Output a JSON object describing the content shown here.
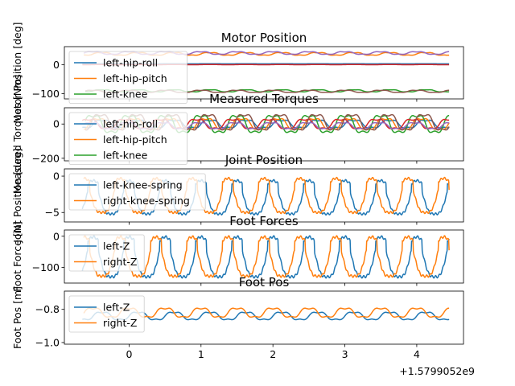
{
  "figure": {
    "x_offset_label": "+1.5799052e9",
    "shared_x": {
      "min": -0.9,
      "max": 4.65,
      "ticks": [
        0,
        1,
        2,
        3,
        4
      ]
    }
  },
  "chart_data": [
    {
      "type": "line",
      "title": "Motor Position",
      "ylabel": "Motor Position [deg]",
      "ylim": [
        -118,
        62
      ],
      "yticks": [
        -100,
        0
      ],
      "legend": {
        "placement": "upper-left",
        "entries": [
          "left-hip-roll",
          "left-hip-pitch",
          "left-knee"
        ]
      },
      "series": [
        {
          "name": "left-hip-roll",
          "color": "#1f77b4",
          "kind": "const",
          "level": 3,
          "amp": 1,
          "period": 0.5
        },
        {
          "name": "left-hip-pitch",
          "color": "#ff7f0e",
          "kind": "sine",
          "level": 37,
          "amp": 5,
          "period": 0.5
        },
        {
          "name": "left-knee",
          "color": "#2ca02c",
          "kind": "sine",
          "level": -90,
          "amp": 4,
          "period": 0.5
        },
        {
          "name": "",
          "color": "#d62728",
          "kind": "const",
          "level": 0,
          "amp": 1,
          "period": 0.5
        },
        {
          "name": "",
          "color": "#9467bd",
          "kind": "sine",
          "level": 40,
          "amp": 5,
          "period": 0.5,
          "phase": 0.25
        },
        {
          "name": "",
          "color": "#8c564b",
          "kind": "sine",
          "level": -92,
          "amp": 4,
          "period": 0.5,
          "phase": 0.25
        }
      ]
    },
    {
      "type": "line",
      "title": "Measured Torques",
      "ylabel": "Measured Torques [Nm]",
      "ylim": [
        -215,
        95
      ],
      "yticks": [
        -200,
        0
      ],
      "legend": {
        "placement": "upper-left",
        "entries": [
          "left-hip-roll",
          "left-hip-pitch",
          "left-knee"
        ]
      },
      "series": [
        {
          "name": "left-hip-roll",
          "color": "#1f77b4",
          "kind": "sine",
          "level": 0,
          "amp": 25,
          "period": 0.5
        },
        {
          "name": "left-hip-pitch",
          "color": "#ff7f0e",
          "kind": "sine",
          "level": 0,
          "amp": 35,
          "period": 0.5,
          "phase": 0.12
        },
        {
          "name": "left-knee",
          "color": "#2ca02c",
          "kind": "sine",
          "level": 0,
          "amp": 55,
          "period": 0.5,
          "phase": 0.25
        },
        {
          "name": "",
          "color": "#d62728",
          "kind": "sine",
          "level": 0,
          "amp": 30,
          "period": 0.5,
          "phase": 0.37
        },
        {
          "name": "",
          "color": "#9467bd",
          "kind": "sine",
          "level": -10,
          "amp": 20,
          "period": 0.5,
          "phase": 0.3
        },
        {
          "name": "",
          "color": "#8c564b",
          "kind": "sine",
          "level": 10,
          "amp": 50,
          "period": 0.5,
          "phase": 0.05
        }
      ]
    },
    {
      "type": "line",
      "title": "Joint Position",
      "ylabel": "Joint Position [deg]",
      "ylim": [
        -6.3,
        1.0
      ],
      "yticks": [
        -5,
        0
      ],
      "legend": {
        "placement": "upper-left",
        "entries": [
          "left-knee-spring",
          "right-knee-spring"
        ]
      },
      "series": [
        {
          "name": "left-knee-spring",
          "color": "#1f77b4",
          "kind": "gait",
          "high": -0.6,
          "low": -5.2,
          "period": 0.5,
          "phase": 0.0
        },
        {
          "name": "right-knee-spring",
          "color": "#ff7f0e",
          "kind": "gait",
          "high": -0.3,
          "low": -5.0,
          "period": 0.5,
          "phase": 0.25
        }
      ]
    },
    {
      "type": "line",
      "title": "Foot Forces",
      "ylabel": "Foot Force [N]",
      "ylim": [
        -150,
        20
      ],
      "yticks": [
        -100,
        0
      ],
      "legend": {
        "placement": "upper-left",
        "entries": [
          "left-Z",
          "right-Z"
        ]
      },
      "series": [
        {
          "name": "left-Z",
          "color": "#1f77b4",
          "kind": "gait",
          "high": -2,
          "low": -130,
          "period": 0.5,
          "phase": 0.0
        },
        {
          "name": "right-Z",
          "color": "#ff7f0e",
          "kind": "gait",
          "high": -2,
          "low": -128,
          "period": 0.5,
          "phase": 0.25
        }
      ]
    },
    {
      "type": "line",
      "title": "Foot Pos",
      "ylabel": "Foot Pos [m]",
      "ylim": [
        -1.01,
        -0.69
      ],
      "yticks": [
        -1.0,
        -0.8
      ],
      "legend": {
        "placement": "upper-left",
        "entries": [
          "left-Z",
          "right-Z"
        ]
      },
      "series": [
        {
          "name": "left-Z",
          "color": "#1f77b4",
          "kind": "sine",
          "level": -0.84,
          "amp": 0.025,
          "period": 0.5,
          "phase": 0.0
        },
        {
          "name": "right-Z",
          "color": "#ff7f0e",
          "kind": "sine",
          "level": -0.82,
          "amp": 0.03,
          "period": 0.5,
          "phase": 0.25
        }
      ]
    }
  ]
}
